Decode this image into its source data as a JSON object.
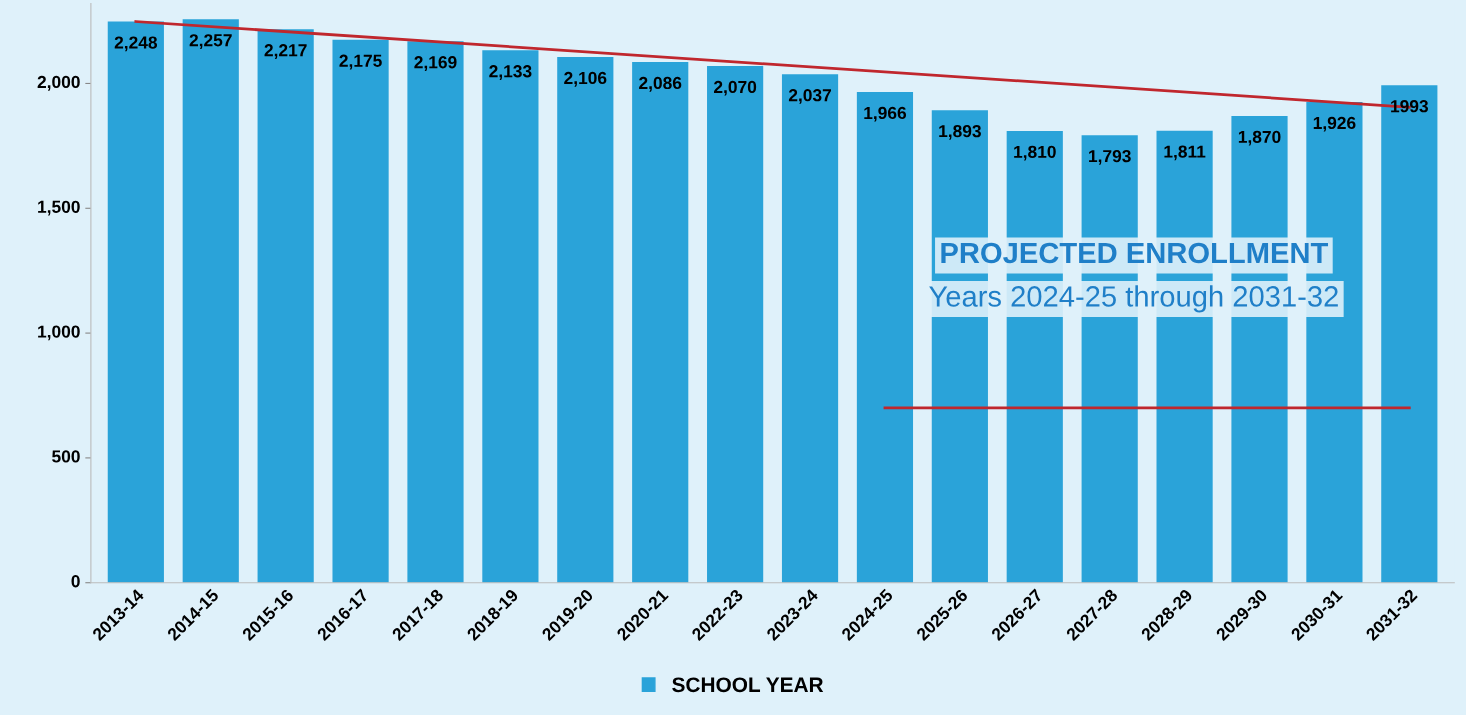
{
  "chart_data": {
    "type": "bar",
    "categories": [
      "2013-14",
      "2014-15",
      "2015-16",
      "2016-17",
      "2017-18",
      "2018-19",
      "2019-20",
      "2020-21",
      "2022-23",
      "2023-24",
      "2024-25",
      "2025-26",
      "2026-27",
      "2027-28",
      "2028-29",
      "2029-30",
      "2030-31",
      "2031-32"
    ],
    "series": [
      {
        "name": "SCHOOL YEAR",
        "color": "#2aa3d9",
        "values": [
          2248,
          2257,
          2217,
          2175,
          2169,
          2133,
          2106,
          2086,
          2070,
          2037,
          1966,
          1893,
          1810,
          1793,
          1811,
          1870,
          1926,
          1993
        ],
        "value_labels": [
          "2,248",
          "2,257",
          "2,217",
          "2,175",
          "2,169",
          "2,133",
          "2,106",
          "2,086",
          "2,070",
          "2,037",
          "1,966",
          "1,893",
          "1,810",
          "1,793",
          "1,811",
          "1,870",
          "1,926",
          "1993"
        ]
      },
      {
        "type": "line",
        "color": "#c0272d",
        "x": [
          "2013-14",
          "2031-32"
        ],
        "values": [
          2248,
          1905
        ]
      },
      {
        "type": "line",
        "color": "#c0272d",
        "x": [
          "2024-25",
          "2031-32"
        ],
        "values": [
          700,
          700
        ]
      }
    ],
    "ylim": [
      0,
      2320
    ],
    "yticks": [
      0,
      500,
      {
        "value": 1000,
        "label": "1,000"
      },
      {
        "value": 1500,
        "label": "1,500"
      },
      {
        "value": 2000,
        "label": "2,000"
      }
    ],
    "annotations": [
      "PROJECTED ENROLLMENT",
      "Years 2024-25 through 2031-32"
    ],
    "grid": false,
    "legend": "bottom"
  }
}
